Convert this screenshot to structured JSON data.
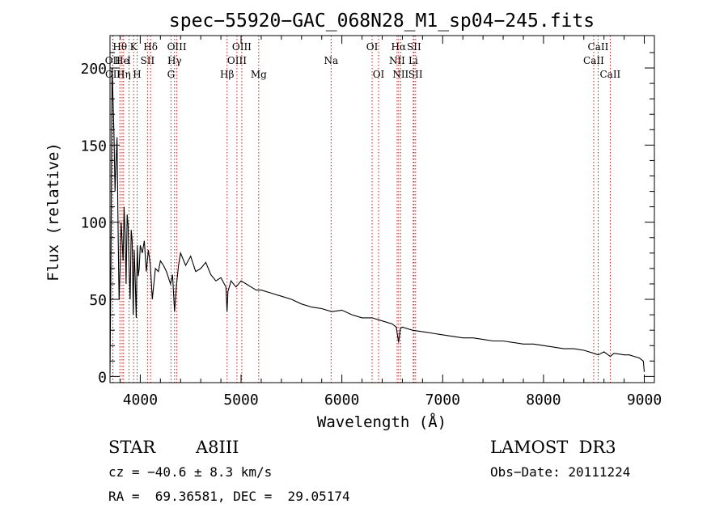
{
  "chart_data": {
    "type": "line",
    "title": "spec−55920−GAC_068N28_M1_sp04−245.fits",
    "xlabel": "Wavelength (Å)",
    "ylabel": "Flux (relative)",
    "xlim": [
      3700,
      9100
    ],
    "ylim": [
      -4,
      221
    ],
    "xticks": [
      4000,
      5000,
      6000,
      7000,
      8000,
      9000
    ],
    "yticks": [
      0,
      50,
      100,
      150,
      200
    ],
    "series": [
      {
        "name": "flux",
        "x": [
          3700,
          3710,
          3720,
          3730,
          3740,
          3750,
          3760,
          3770,
          3780,
          3790,
          3800,
          3810,
          3820,
          3830,
          3840,
          3850,
          3860,
          3870,
          3880,
          3890,
          3900,
          3910,
          3920,
          3930,
          3940,
          3950,
          3960,
          3970,
          3980,
          3990,
          4000,
          4020,
          4040,
          4060,
          4080,
          4100,
          4120,
          4150,
          4180,
          4200,
          4230,
          4260,
          4300,
          4320,
          4340,
          4360,
          4380,
          4400,
          4450,
          4500,
          4550,
          4600,
          4650,
          4700,
          4750,
          4800,
          4850,
          4861,
          4870,
          4900,
          4950,
          5000,
          5050,
          5100,
          5150,
          5200,
          5300,
          5400,
          5500,
          5600,
          5700,
          5800,
          5900,
          6000,
          6100,
          6200,
          6300,
          6400,
          6500,
          6540,
          6563,
          6580,
          6600,
          6700,
          6800,
          6900,
          7000,
          7100,
          7200,
          7300,
          7400,
          7500,
          7600,
          7700,
          7800,
          7900,
          8000,
          8100,
          8200,
          8300,
          8400,
          8500,
          8542,
          8600,
          8662,
          8700,
          8800,
          8850,
          8900,
          8950,
          8990,
          9000
        ],
        "y": [
          2,
          75,
          200,
          180,
          155,
          120,
          140,
          155,
          95,
          50,
          70,
          100,
          88,
          75,
          110,
          92,
          60,
          105,
          98,
          68,
          50,
          95,
          88,
          40,
          82,
          62,
          38,
          85,
          65,
          70,
          85,
          80,
          88,
          68,
          82,
          72,
          50,
          70,
          68,
          75,
          72,
          68,
          60,
          66,
          42,
          60,
          72,
          80,
          72,
          78,
          68,
          70,
          74,
          66,
          62,
          64,
          58,
          42,
          55,
          62,
          58,
          62,
          60,
          58,
          56,
          56,
          54,
          52,
          50,
          47,
          45,
          44,
          42,
          43,
          40,
          38,
          38,
          36,
          34,
          32,
          22,
          31,
          32,
          30,
          29,
          28,
          27,
          26,
          25,
          25,
          24,
          23,
          23,
          22,
          21,
          21,
          20,
          19,
          18,
          18,
          17,
          15,
          14,
          16,
          13,
          15,
          14,
          14,
          13,
          12,
          10,
          3
        ]
      }
    ],
    "lines": [
      {
        "label": "Hθ",
        "wavelength": 3798,
        "row": 1
      },
      {
        "label": "OII",
        "wavelength": 3727,
        "row": 2
      },
      {
        "label": "OII",
        "wavelength": 3729,
        "row": 3
      },
      {
        "label": "He",
        "wavelength": 3820,
        "row": 2
      },
      {
        "label": "Hη",
        "wavelength": 3835,
        "row": 3
      },
      {
        "label": "K",
        "wavelength": 3934,
        "row": 1
      },
      {
        "label": "SII",
        "wavelength": 4072,
        "row": 2
      },
      {
        "label": "H",
        "wavelength": 3969,
        "row": 3
      },
      {
        "label": "I",
        "wavelength": 3889,
        "row": 2
      },
      {
        "label": "Hδ",
        "wavelength": 4102,
        "row": 1
      },
      {
        "label": "OIII",
        "wavelength": 4363,
        "row": 1
      },
      {
        "label": "Hγ",
        "wavelength": 4340,
        "row": 2
      },
      {
        "label": "G",
        "wavelength": 4305,
        "row": 3
      },
      {
        "label": "OIII",
        "wavelength": 5007,
        "row": 1
      },
      {
        "label": "OIII",
        "wavelength": 4959,
        "row": 2
      },
      {
        "label": "Hβ",
        "wavelength": 4861,
        "row": 3
      },
      {
        "label": "Mg",
        "wavelength": 5175,
        "row": 3
      },
      {
        "label": "Na",
        "wavelength": 5893,
        "row": 2
      },
      {
        "label": "OI",
        "wavelength": 6300,
        "row": 1
      },
      {
        "label": "OI",
        "wavelength": 6364,
        "row": 3
      },
      {
        "label": "Hα",
        "wavelength": 6563,
        "row": 1
      },
      {
        "label": "SII",
        "wavelength": 6716,
        "row": 1
      },
      {
        "label": "NII",
        "wavelength": 6548,
        "row": 2
      },
      {
        "label": "Li",
        "wavelength": 6708,
        "row": 2
      },
      {
        "label": "NII",
        "wavelength": 6583,
        "row": 3
      },
      {
        "label": "SII",
        "wavelength": 6731,
        "row": 3
      },
      {
        "label": "CaII",
        "wavelength": 8542,
        "row": 1
      },
      {
        "label": "CaII",
        "wavelength": 8498,
        "row": 2
      },
      {
        "label": "CaII",
        "wavelength": 8662,
        "row": 3
      }
    ]
  },
  "info": {
    "object_class": "STAR",
    "subclass": "A8III",
    "survey": "LAMOST  DR3",
    "cz": "cz = −40.6 ± 8.3 km/s",
    "obs_date": "Obs−Date: 20111224",
    "coords": "RA =  69.36581, DEC =  29.05174"
  }
}
